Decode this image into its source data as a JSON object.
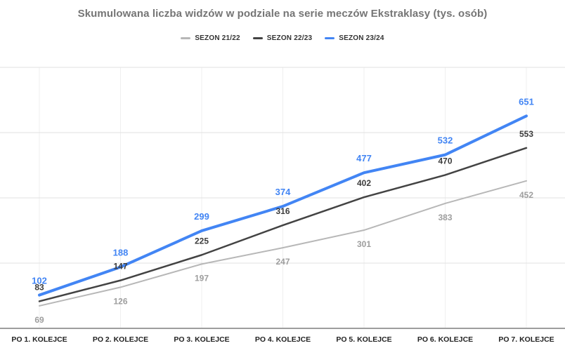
{
  "colors": {
    "background": "#ffffff",
    "title": "#757575",
    "legend_text": "#333333",
    "grid_horizontal": "#e2e2e2",
    "grid_vertical": "#efefef",
    "axis_line": "#9e9e9e",
    "axis_label": "#222222"
  },
  "chart_data": {
    "type": "line",
    "title": "Skumulowana liczba widzów w podziale na serie meczów Ekstraklasy (tys. osób)",
    "xlabel": "",
    "ylabel": "",
    "legend_position": "top",
    "grid": true,
    "ylim": [
      0,
      800
    ],
    "gridlines": [
      0,
      200,
      400,
      600,
      800
    ],
    "categories": [
      "PO 1. KOLEJCE",
      "PO 2. KOLEJCE",
      "PO 3. KOLEJCE",
      "PO 4. KOLEJCE",
      "PO 5. KOLEJCE",
      "PO 6. KOLEJCE",
      "PO 7. KOLEJCE"
    ],
    "series": [
      {
        "name": "SEZON 21/22",
        "color": "#b7b7b7",
        "label_color": "#9e9e9e",
        "label_position": "below",
        "label_size": 12,
        "line_width": 2,
        "values": [
          69,
          126,
          197,
          247,
          301,
          383,
          452
        ]
      },
      {
        "name": "SEZON 22/23",
        "color": "#434343",
        "label_color": "#3c3c3c",
        "label_position": "above",
        "label_size": 12,
        "line_width": 2.5,
        "values": [
          83,
          147,
          225,
          316,
          402,
          470,
          553
        ]
      },
      {
        "name": "SEZON 23/24",
        "color": "#4285f4",
        "label_color": "#4285f4",
        "label_position": "above",
        "label_size": 13,
        "line_width": 4,
        "values": [
          102,
          188,
          299,
          374,
          477,
          532,
          651
        ]
      }
    ]
  }
}
